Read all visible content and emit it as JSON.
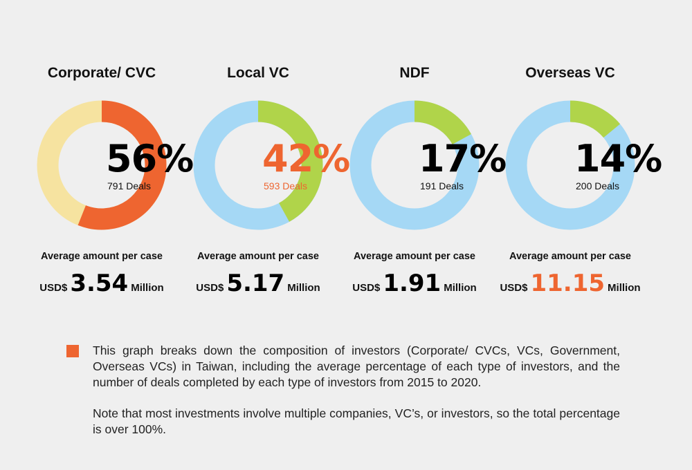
{
  "chart_data": {
    "type": "pie",
    "variant": "donut",
    "charts": [
      {
        "title": "Corporate/ CVC",
        "percent": 56,
        "percent_label": "56%",
        "deals_label": "791 Deals",
        "avg_label": "Average amount per case",
        "currency": "USD$",
        "amount": "3.54",
        "unit": "Million",
        "fill_color": "#ee6530",
        "rest_color": "#f6e3a0",
        "highlight_text": false,
        "highlight_amount": false
      },
      {
        "title": "Local VC",
        "percent": 42,
        "percent_label": "42%",
        "deals_label": "593 Deals",
        "avg_label": "Average amount per case",
        "currency": "USD$",
        "amount": "5.17",
        "unit": "Million",
        "fill_color": "#b0d44a",
        "rest_color": "#a5d8f5",
        "highlight_text": true,
        "highlight_amount": false
      },
      {
        "title": "NDF",
        "percent": 17,
        "percent_label": "17%",
        "deals_label": "191 Deals",
        "avg_label": "Average amount per case",
        "currency": "USD$",
        "amount": "1.91",
        "unit": "Million",
        "fill_color": "#b0d44a",
        "rest_color": "#a5d8f5",
        "highlight_text": false,
        "highlight_amount": false
      },
      {
        "title": "Overseas VC",
        "percent": 14,
        "percent_label": "14%",
        "deals_label": "200 Deals",
        "avg_label": "Average amount per case",
        "currency": "USD$",
        "amount": "11.15",
        "unit": "Million",
        "fill_color": "#b0d44a",
        "rest_color": "#a5d8f5",
        "highlight_text": false,
        "highlight_amount": true
      }
    ],
    "highlight_color": "#ee6530"
  },
  "note": {
    "paragraph1": "This graph breaks down the composition of investors (Corporate/ CVCs, VCs, Government, Overseas VCs)  in Taiwan, including the average percentage of each type of investors, and the number of deals completed by each type of investors from 2015 to 2020.",
    "paragraph2": "Note that most investments involve multiple companies, VC’s, or investors, so the total percentage is over 100%."
  }
}
